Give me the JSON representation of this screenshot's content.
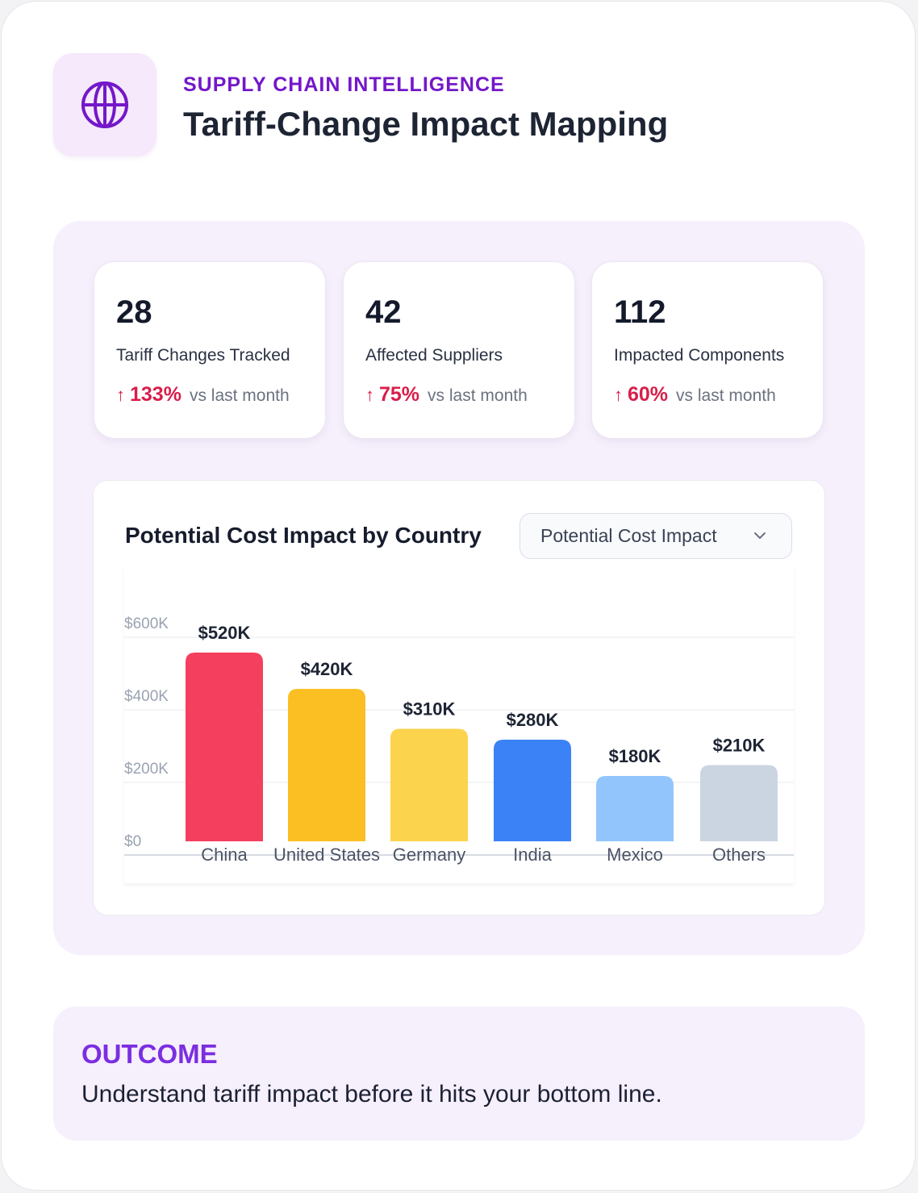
{
  "header": {
    "eyebrow": "SUPPLY CHAIN INTELLIGENCE",
    "title": "Tariff-Change Impact Mapping",
    "logo_icon": "globe-icon"
  },
  "stats": [
    {
      "value": "28",
      "label": "Tariff Changes Tracked",
      "delta": "133%",
      "compare": "vs last month",
      "trend": "up"
    },
    {
      "value": "42",
      "label": "Affected Suppliers",
      "delta": "75%",
      "compare": "vs last month",
      "trend": "up"
    },
    {
      "value": "112",
      "label": "Impacted Components",
      "delta": "60%",
      "compare": "vs last month",
      "trend": "up"
    }
  ],
  "chart_panel": {
    "title": "Potential Cost Impact by Country",
    "dropdown_value": "Potential Cost Impact"
  },
  "chart_data": {
    "type": "bar",
    "title": "Potential Cost Impact by Country",
    "categories": [
      "China",
      "United States",
      "Germany",
      "India",
      "Mexico",
      "Others"
    ],
    "values": [
      520,
      420,
      310,
      280,
      180,
      210
    ],
    "value_labels": [
      "$520K",
      "$420K",
      "$310K",
      "$280K",
      "$180K",
      "$210K"
    ],
    "colors": [
      "#f43f5e",
      "#fbbf24",
      "#fcd34d",
      "#3b82f6",
      "#93c5fd",
      "#cbd5e1"
    ],
    "y_ticks": [
      0,
      200,
      400,
      600
    ],
    "y_tick_labels": [
      "$0",
      "$200K",
      "$400K",
      "$600K"
    ],
    "ylim": [
      0,
      600
    ],
    "unit": "thousands USD",
    "grid": true
  },
  "outcome": {
    "label": "OUTCOME",
    "text": "Understand tariff impact before it hits your bottom line."
  },
  "colors": {
    "accent": "#7417c9",
    "positive_delta": "#d81e4a",
    "panel_bg": "#f6f0fc"
  }
}
